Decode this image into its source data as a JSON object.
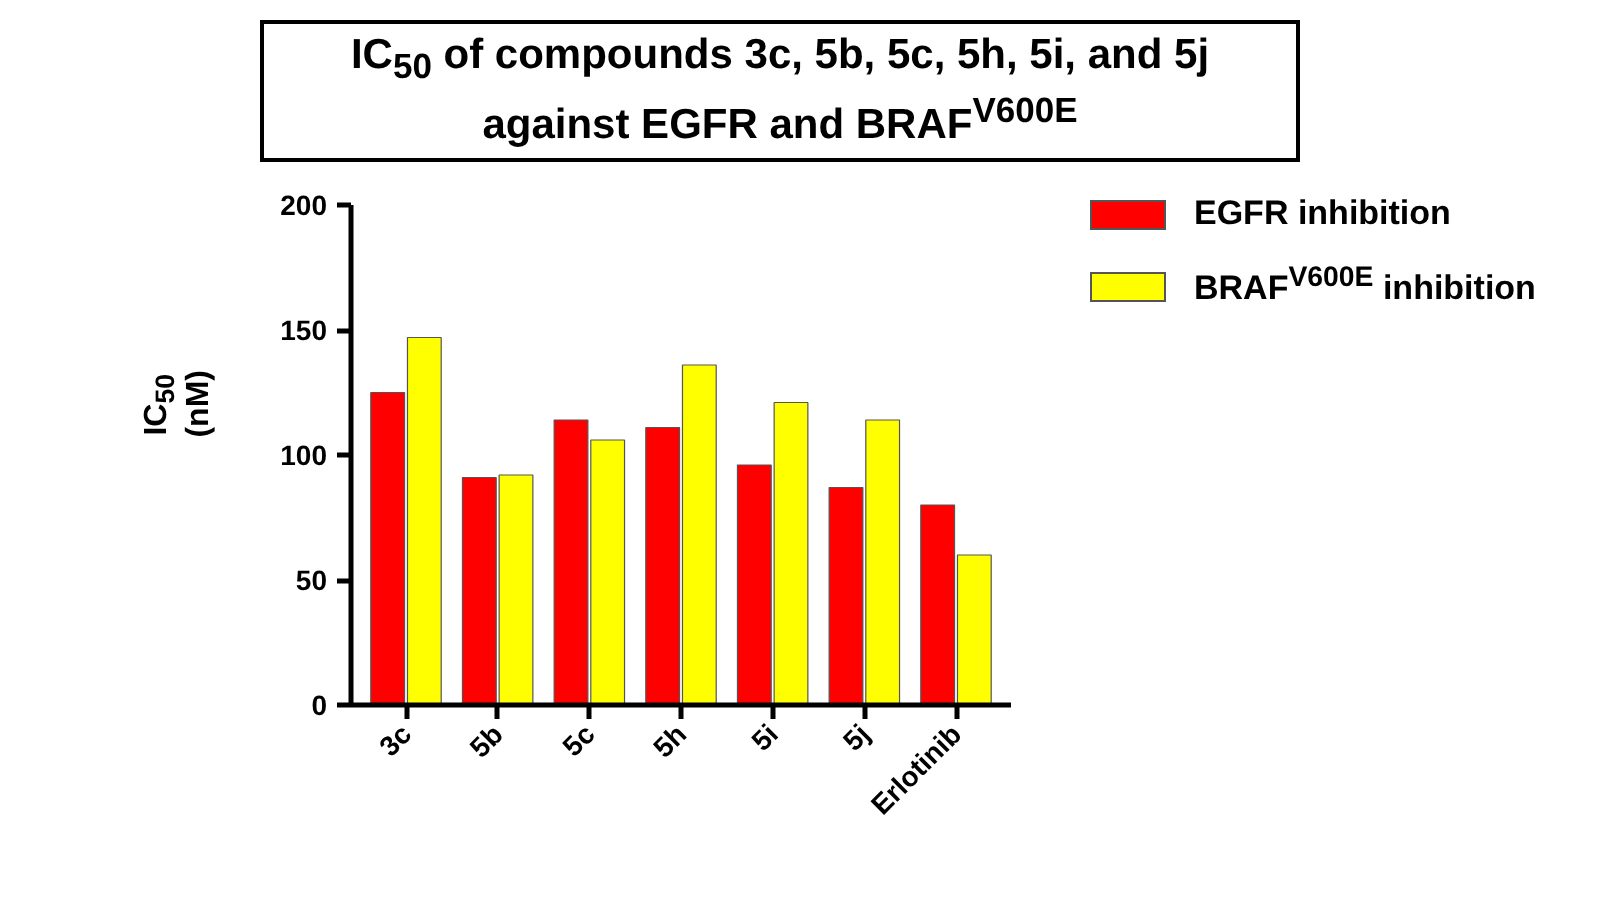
{
  "chart_data": {
    "type": "bar",
    "title": "IC$_{50}$ of compounds 3c, 5b, 5c, 5h, 5i, and 5j against EGFR and BRAF$^{V600E}$",
    "ylabel": "IC$_{50}$ (nM)",
    "categories": [
      "3c",
      "5b",
      "5c",
      "5h",
      "5i",
      "5j",
      "Erlotinib"
    ],
    "series": [
      {
        "name": "EGFR inhibition",
        "color": "#ff0000",
        "values": [
          125,
          91,
          114,
          111,
          96,
          87,
          80
        ]
      },
      {
        "name": "BRAF$^{V600E}$ inhibition",
        "color": "#ffff00",
        "values": [
          147,
          92,
          106,
          136,
          121,
          114,
          60
        ]
      }
    ],
    "ylim": [
      0,
      200
    ],
    "yticks": [
      0,
      50,
      100,
      150,
      200
    ],
    "grid": false,
    "legend": "right"
  }
}
